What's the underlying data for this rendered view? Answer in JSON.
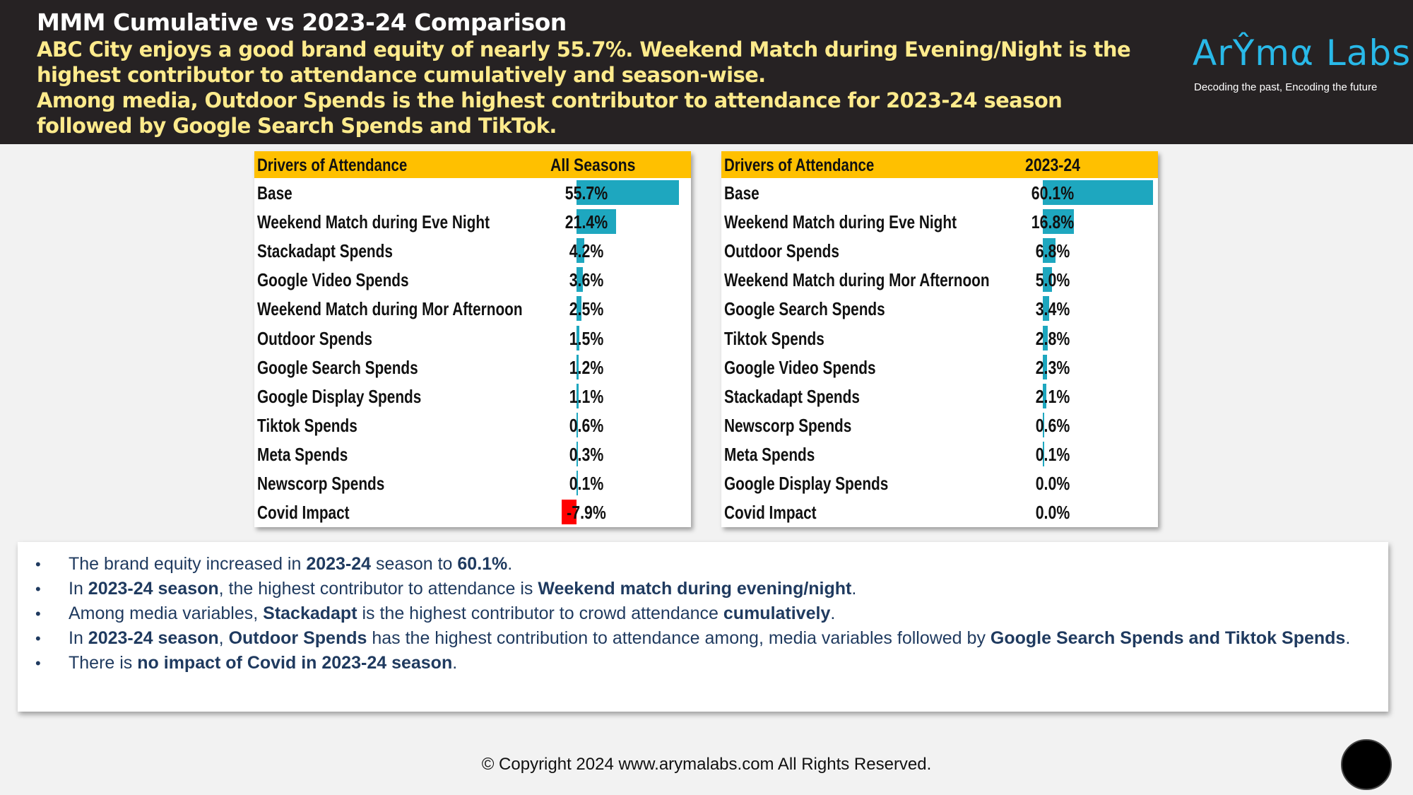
{
  "header": {
    "title": "MMM Cumulative vs 2023-24 Comparison",
    "subtitle_1": "ABC City enjoys a good brand equity of nearly 55.7%. Weekend Match during Evening/Night is the highest contributor to attendance cumulatively and season-wise.",
    "subtitle_2": "Among media, Outdoor Spends is the highest contributor to attendance for 2023-24 season followed by Google Search Spends and TikTok.",
    "background": "#262223",
    "subtitle_color": "#ffeb8c"
  },
  "logo": {
    "text": "ArŶmα Labs",
    "tagline": "Decoding the past, Encoding the future",
    "color": "#29b9e8"
  },
  "table_left": {
    "header_driver": "Drivers of Attendance",
    "header_value": "All Seasons",
    "rows": [
      {
        "label": "Base",
        "value": "55.7%",
        "pct": 55.7
      },
      {
        "label": "Weekend Match during Eve Night",
        "value": "21.4%",
        "pct": 21.4
      },
      {
        "label": "Stackadapt Spends",
        "value": "4.2%",
        "pct": 4.2
      },
      {
        "label": "Google Video Spends",
        "value": "3.6%",
        "pct": 3.6
      },
      {
        "label": "Weekend Match during Mor Afternoon",
        "value": "2.5%",
        "pct": 2.5
      },
      {
        "label": "Outdoor Spends",
        "value": "1.5%",
        "pct": 1.5
      },
      {
        "label": "Google Search Spends",
        "value": "1.2%",
        "pct": 1.2
      },
      {
        "label": "Google Display Spends",
        "value": "1.1%",
        "pct": 1.1
      },
      {
        "label": "Tiktok Spends",
        "value": "0.6%",
        "pct": 0.6
      },
      {
        "label": "Meta Spends",
        "value": "0.3%",
        "pct": 0.3
      },
      {
        "label": "Newscorp Spends",
        "value": "0.1%",
        "pct": 0.1
      },
      {
        "label": "Covid Impact",
        "value": "-7.9%",
        "pct": -7.9
      }
    ]
  },
  "table_right": {
    "header_driver": "Drivers of Attendance",
    "header_value": "2023-24",
    "rows": [
      {
        "label": "Base",
        "value": "60.1%",
        "pct": 60.1
      },
      {
        "label": "Weekend Match during Eve Night",
        "value": "16.8%",
        "pct": 16.8
      },
      {
        "label": "Outdoor Spends",
        "value": "6.8%",
        "pct": 6.8
      },
      {
        "label": "Weekend Match during Mor Afternoon",
        "value": "5.0%",
        "pct": 5.0
      },
      {
        "label": "Google Search Spends",
        "value": "3.4%",
        "pct": 3.4
      },
      {
        "label": "Tiktok Spends",
        "value": "2.8%",
        "pct": 2.8
      },
      {
        "label": "Google Video Spends",
        "value": "2.3%",
        "pct": 2.3
      },
      {
        "label": "Stackadapt Spends",
        "value": "2.1%",
        "pct": 2.1
      },
      {
        "label": "Newscorp Spends",
        "value": "0.6%",
        "pct": 0.6
      },
      {
        "label": "Meta Spends",
        "value": "0.1%",
        "pct": 0.1
      },
      {
        "label": "Google Display Spends",
        "value": "0.0%",
        "pct": 0.0
      },
      {
        "label": "Covid Impact",
        "value": "0.0%",
        "pct": 0.0
      }
    ]
  },
  "colors": {
    "table_header": "#ffc000",
    "bar_positive": "#1ea7bf",
    "bar_negative": "#ff0000",
    "notes_text": "#1f3a5f"
  },
  "notes": [
    [
      {
        "t": "The brand equity increased in "
      },
      {
        "t": "2023-24",
        "b": true
      },
      {
        "t": " season to "
      },
      {
        "t": "60.1%",
        "b": true
      },
      {
        "t": "."
      }
    ],
    [
      {
        "t": "In "
      },
      {
        "t": "2023-24 season",
        "b": true
      },
      {
        "t": ", the highest contributor to attendance is "
      },
      {
        "t": "Weekend match during evening/night",
        "b": true
      },
      {
        "t": "."
      }
    ],
    [
      {
        "t": "Among media variables, "
      },
      {
        "t": "Stackadapt",
        "b": true
      },
      {
        "t": " is the highest contributor to crowd attendance "
      },
      {
        "t": "cumulatively",
        "b": true
      },
      {
        "t": "."
      }
    ],
    [
      {
        "t": "In "
      },
      {
        "t": "2023-24 season",
        "b": true
      },
      {
        "t": ", "
      },
      {
        "t": "Outdoor Spends",
        "b": true
      },
      {
        "t": " has the highest contribution to attendance among, media variables followed by "
      },
      {
        "t": "Google Search Spends and Tiktok Spends",
        "b": true
      },
      {
        "t": "."
      }
    ],
    [
      {
        "t": "There is "
      },
      {
        "t": "no impact of Covid in 2023-24 season",
        "b": true
      },
      {
        "t": "."
      }
    ]
  ],
  "bullet_char": "•",
  "footer": {
    "copyright": "© Copyright 2024 www.arymalabs.com All Rights Reserved."
  }
}
